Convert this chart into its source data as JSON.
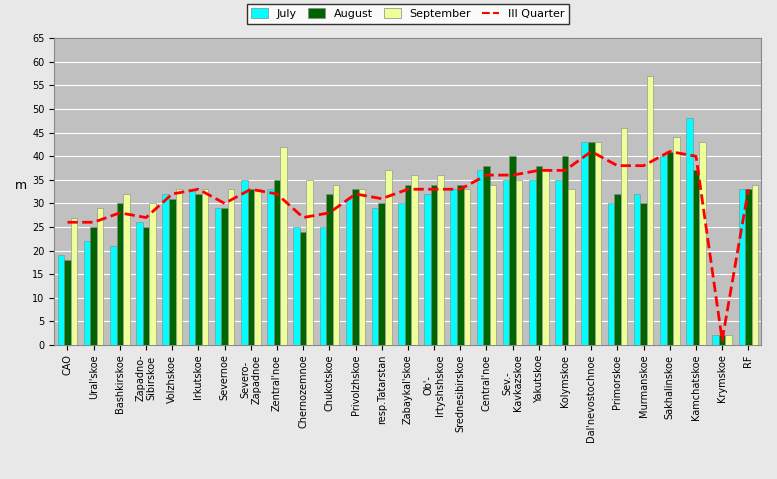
{
  "categories": [
    "CAO",
    "Ural'skoe",
    "Bashkirskoe",
    "Zapadno-\nSibirskoe",
    "Volzhskoe",
    "Irkutskoe",
    "Severnoe",
    "Severo-\nZapadnoe",
    "Zentral'noe",
    "Chernozemnoe",
    "Chukotskoe",
    "Privolzhskoe",
    "resp.Tatarstan",
    "Zabaykal'skoe",
    "Ob'-\nIrtyshshskoe",
    "Srednesibirskoe",
    "Central'noe",
    "Sev.-\nKavkazskoe",
    "Yakutskoe",
    "Kolymskoe",
    "Dal'nevostochnoe",
    "Primorskoe",
    "Murmanskoe",
    "Sakhalinskoe",
    "Kamchatskoe",
    "Krymskoe",
    "RF"
  ],
  "july": [
    19,
    22,
    21,
    26,
    32,
    33,
    29,
    35,
    33,
    25,
    25,
    31,
    29,
    30,
    32,
    33,
    37,
    35,
    35,
    35,
    43,
    30,
    32,
    40,
    48,
    2,
    33
  ],
  "august": [
    18,
    25,
    30,
    25,
    31,
    32,
    29,
    33,
    35,
    24,
    32,
    33,
    30,
    34,
    34,
    34,
    38,
    40,
    38,
    40,
    43,
    32,
    30,
    41,
    37,
    2,
    33
  ],
  "september": [
    27,
    29,
    32,
    30,
    33,
    33,
    33,
    33,
    42,
    35,
    34,
    33,
    37,
    36,
    36,
    33,
    34,
    35,
    37,
    33,
    43,
    46,
    57,
    44,
    43,
    2,
    34
  ],
  "quarter": [
    26,
    26,
    28,
    27,
    32,
    33,
    30,
    33,
    32,
    27,
    28,
    32,
    31,
    33,
    33,
    33,
    36,
    36,
    37,
    37,
    41,
    38,
    38,
    41,
    40,
    1,
    33
  ],
  "bar_width": 0.25,
  "ylim": [
    0,
    65
  ],
  "yticks": [
    0,
    5,
    10,
    15,
    20,
    25,
    30,
    35,
    40,
    45,
    50,
    55,
    60,
    65
  ],
  "ylabel": "m",
  "color_july": "#00FFFF",
  "color_august": "#006400",
  "color_september": "#EEFF99",
  "color_quarter": "#FF0000",
  "bg_color": "#C0C0C0",
  "grid_color": "#FFFFFF",
  "legend_fontsize": 8,
  "tick_fontsize": 7
}
